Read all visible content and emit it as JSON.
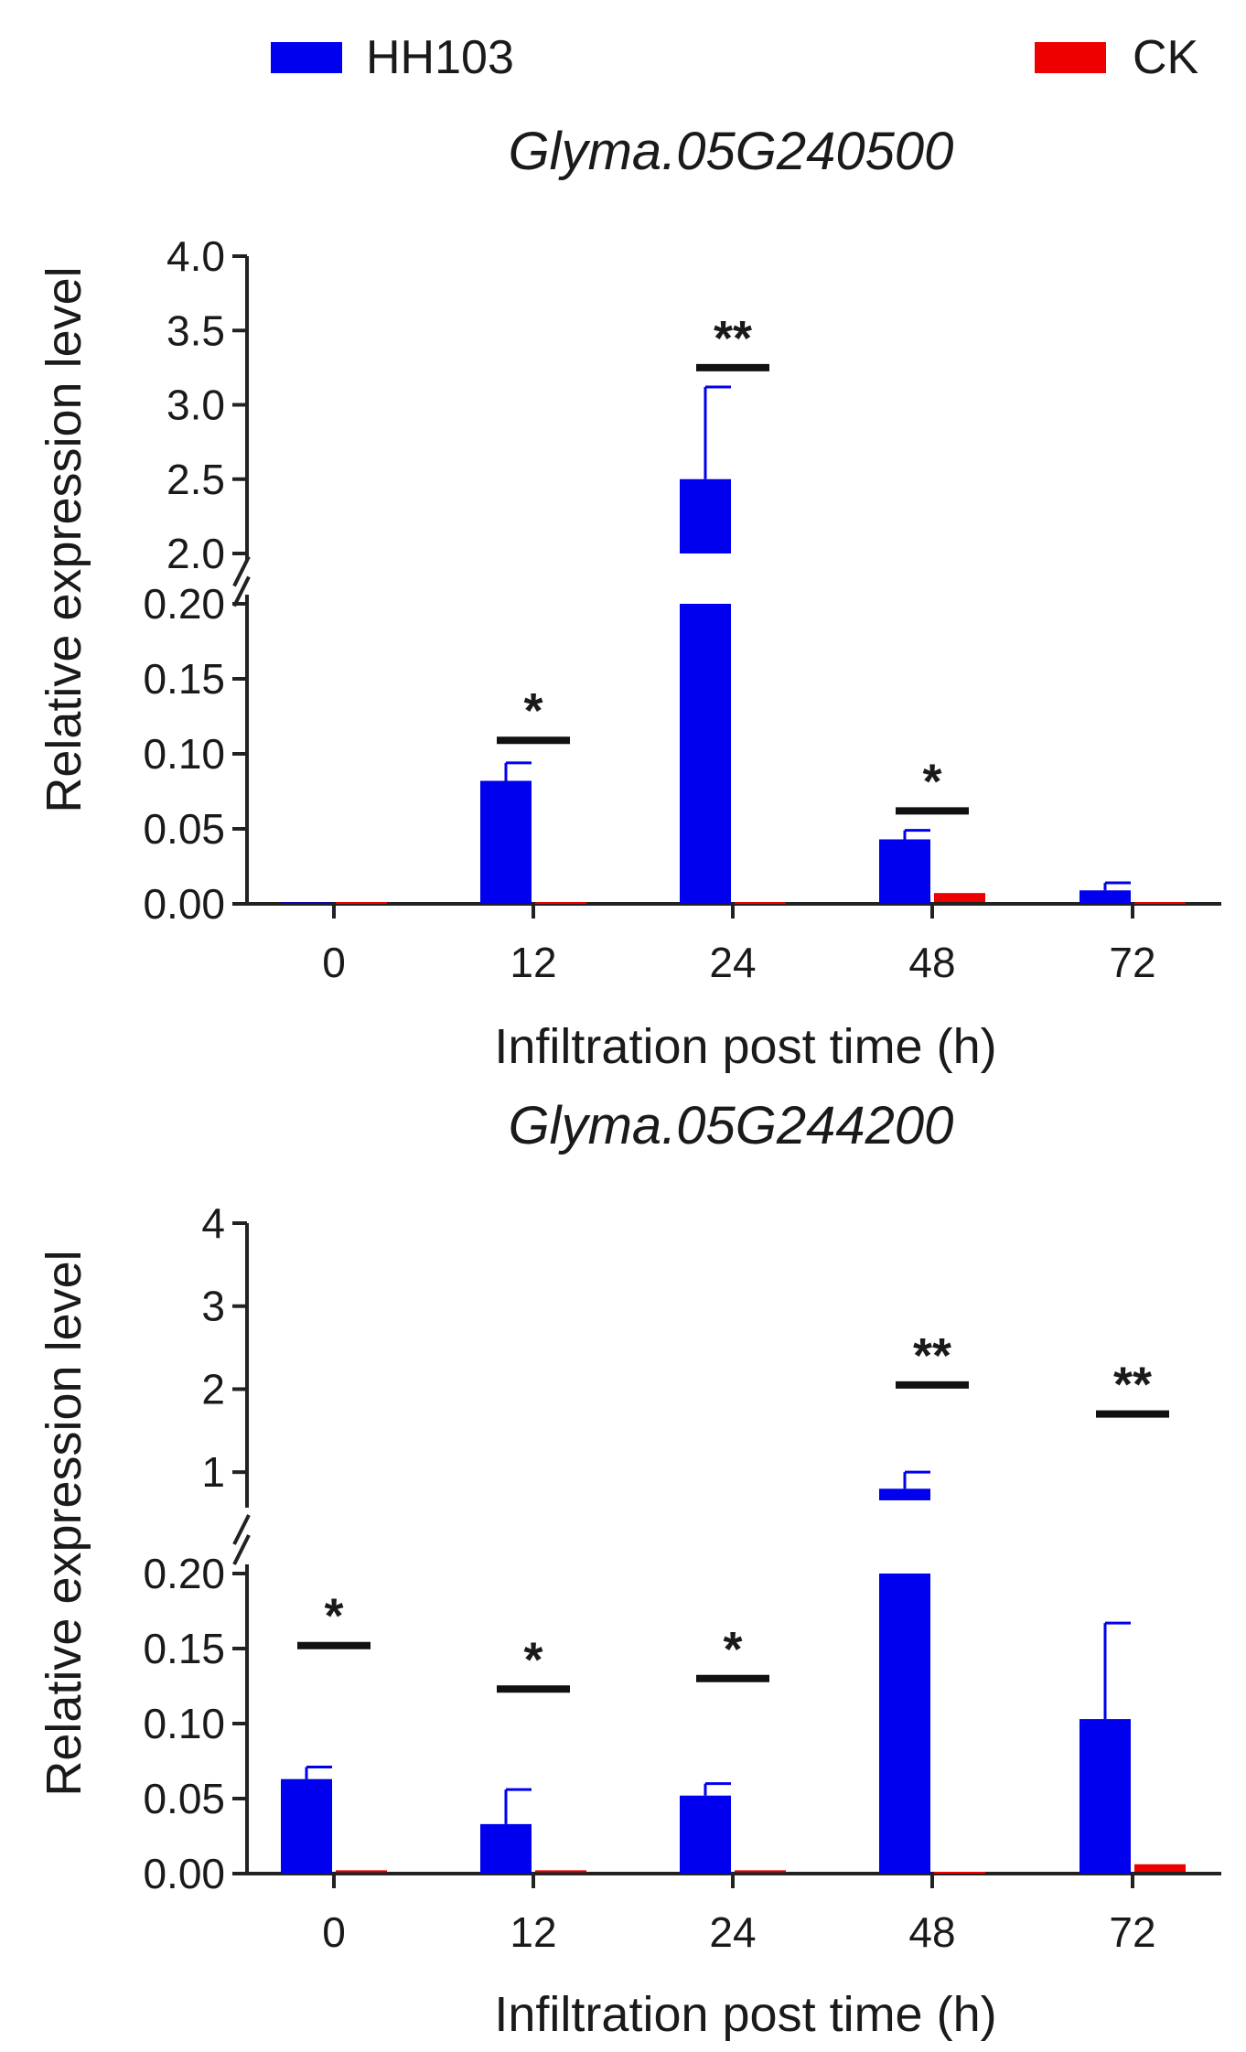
{
  "legend": [
    {
      "name": "HH103",
      "color": "#0000ee"
    },
    {
      "name": "CK",
      "color": "#ee0000"
    }
  ],
  "chart_data": [
    {
      "type": "bar",
      "title": "Glyma.05G240500",
      "xlabel": "Infiltration post time (h)",
      "ylabel": "Relative expression level",
      "categories": [
        "0",
        "12",
        "24",
        "48",
        "72"
      ],
      "series": [
        {
          "name": "HH103",
          "values": [
            0.001,
            0.082,
            2.5,
            0.043,
            0.009
          ],
          "errors": [
            0,
            0.012,
            0.62,
            0.006,
            0.005
          ]
        },
        {
          "name": "CK",
          "values": [
            0,
            0,
            0,
            0.006,
            0
          ],
          "errors": [
            0,
            0,
            0,
            0,
            0
          ]
        }
      ],
      "y_break": {
        "lower_range": [
          0,
          0.2
        ],
        "upper_range": [
          2.0,
          4.0
        ]
      },
      "lower_ticks": [
        "0.00",
        "0.05",
        "0.10",
        "0.15",
        "0.20"
      ],
      "upper_ticks": [
        "2.0",
        "2.5",
        "3.0",
        "3.5",
        "4.0"
      ],
      "significance": [
        {
          "category": "12",
          "label": "*",
          "y": 0.109
        },
        {
          "category": "24",
          "label": "**",
          "y": 3.25
        },
        {
          "category": "48",
          "label": "*",
          "y": 0.062
        }
      ]
    },
    {
      "type": "bar",
      "title": "Glyma.05G244200",
      "xlabel": "Infiltration post time (h)",
      "ylabel": "Relative expression level",
      "categories": [
        "0",
        "12",
        "24",
        "48",
        "72"
      ],
      "series": [
        {
          "name": "HH103",
          "values": [
            0.063,
            0.033,
            0.052,
            0.8,
            0.103
          ],
          "errors": [
            0.008,
            0.023,
            0.008,
            0.2,
            0.064
          ]
        },
        {
          "name": "CK",
          "values": [
            0.001,
            0.001,
            0.001,
            0,
            0.005
          ],
          "errors": [
            0,
            0,
            0,
            0,
            0
          ]
        }
      ],
      "y_break": {
        "lower_range": [
          0,
          0.2
        ],
        "upper_range": [
          0.66,
          4.0
        ]
      },
      "lower_ticks": [
        "0.00",
        "0.05",
        "0.10",
        "0.15",
        "0.20"
      ],
      "upper_ticks": [
        "1",
        "2",
        "3",
        "4"
      ],
      "significance": [
        {
          "category": "0",
          "label": "*",
          "y": 0.152
        },
        {
          "category": "12",
          "label": "*",
          "y": 0.123
        },
        {
          "category": "24",
          "label": "*",
          "y": 0.13
        },
        {
          "category": "48",
          "label": "**",
          "y": 2.05
        },
        {
          "category": "72",
          "label": "**",
          "y": 1.7
        }
      ]
    }
  ]
}
